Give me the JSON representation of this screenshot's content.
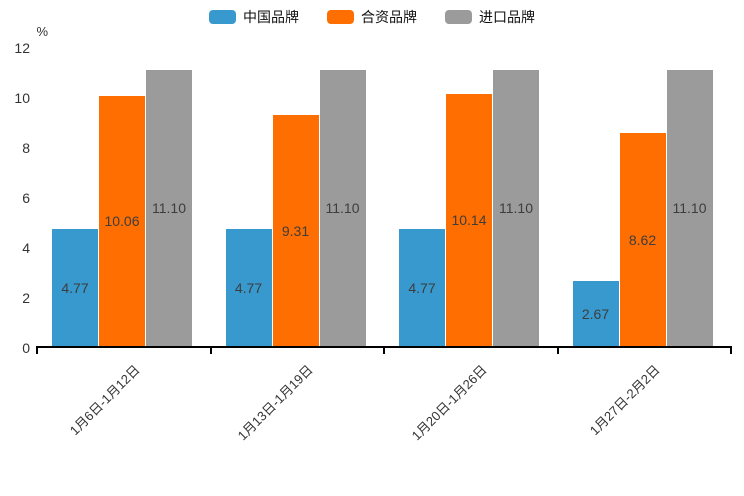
{
  "chart_data": {
    "type": "bar",
    "title": "",
    "xlabel": "",
    "ylabel": "%",
    "ylim": [
      0,
      12
    ],
    "yticks": [
      0,
      2,
      4,
      6,
      8,
      10,
      12
    ],
    "grid": false,
    "legend_position": "top-center",
    "value_label_position": "inside-center",
    "categories": [
      "1月6日-1月12日",
      "1月13日-1月19日",
      "1月20日-1月26日",
      "1月27日-2月2日"
    ],
    "series": [
      {
        "name": "中国品牌",
        "color": "#3899CE",
        "values": [
          4.77,
          4.77,
          4.77,
          2.67
        ]
      },
      {
        "name": "合资品牌",
        "color": "#FF6E00",
        "values": [
          10.06,
          9.31,
          10.14,
          8.62
        ]
      },
      {
        "name": "进口品牌",
        "color": "#9B9B9B",
        "values": [
          11.1,
          11.1,
          11.1,
          11.1
        ]
      }
    ]
  },
  "colors": {
    "axis_line": "#000000",
    "tick_text": "#333333",
    "bar_value_text": "#3d3d3d",
    "background": "#FFFFFF"
  }
}
